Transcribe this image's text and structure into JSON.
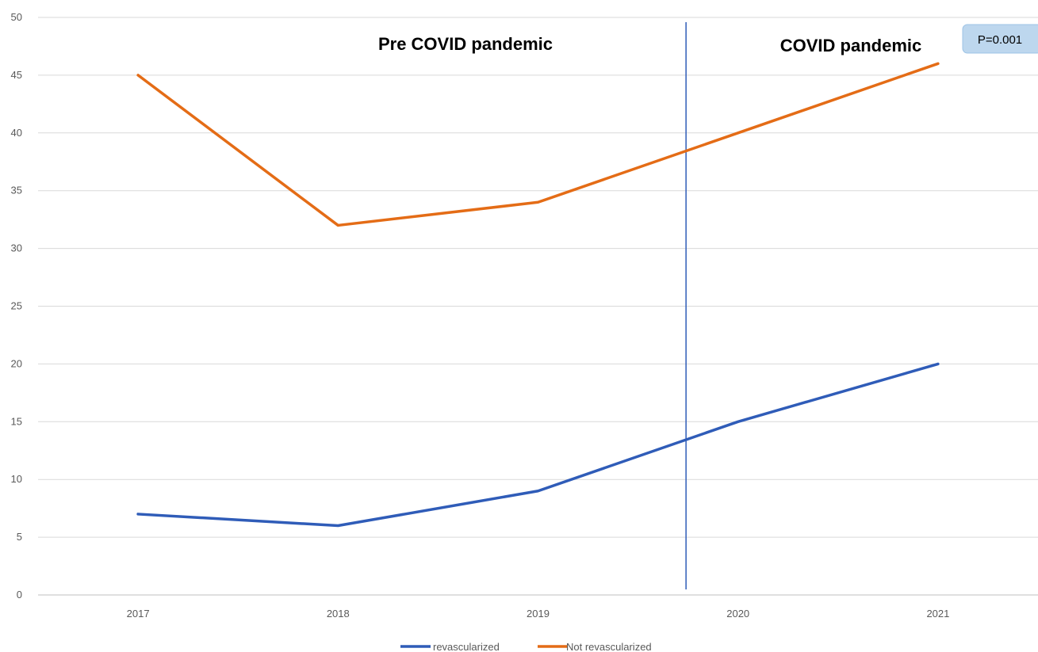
{
  "chart_data": {
    "type": "line",
    "categories": [
      "2017",
      "2018",
      "2019",
      "2020",
      "2021"
    ],
    "series": [
      {
        "name": "revascularized",
        "color": "#2f5cb8",
        "values": [
          7,
          6,
          9,
          15,
          20
        ]
      },
      {
        "name": "Not revascularized",
        "color": "#e46c16",
        "values": [
          45,
          32,
          34,
          40,
          46
        ]
      }
    ],
    "ylim": [
      0,
      50
    ],
    "yticks": [
      0,
      5,
      10,
      15,
      20,
      25,
      30,
      35,
      40,
      45,
      50
    ],
    "grid": true,
    "legend_position": "bottom",
    "annotations": {
      "pre_label": "Pre COVID pandemic",
      "post_label": "COVID pandemic",
      "divider_between": [
        "2019",
        "2020"
      ],
      "divider_color": "#2f5cb8",
      "p_value": "P=0.001",
      "p_box_color": "#bdd7ee"
    }
  }
}
